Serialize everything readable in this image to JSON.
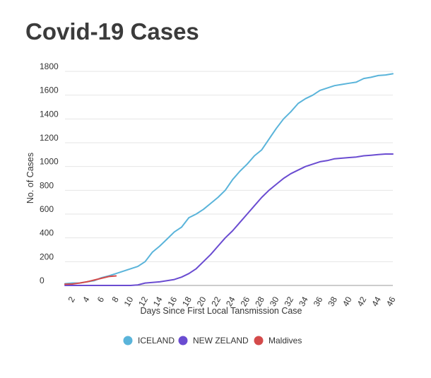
{
  "chart_data": {
    "type": "line",
    "title": "Covid-19 Cases",
    "xlabel": "Days Since First Local Tansmission Case",
    "ylabel": "No. of Cases",
    "ylim": [
      0,
      1800
    ],
    "xlim": [
      1,
      46
    ],
    "y_ticks": [
      0,
      200,
      400,
      600,
      800,
      1000,
      1200,
      1400,
      1600,
      1800
    ],
    "x_ticks": [
      2,
      4,
      6,
      8,
      10,
      12,
      14,
      16,
      18,
      20,
      22,
      24,
      26,
      28,
      30,
      32,
      34,
      36,
      38,
      40,
      42,
      44,
      46
    ],
    "grid": true,
    "legend_position": "bottom",
    "series": [
      {
        "name": "ICELAND",
        "color": "#5ab4da",
        "x": [
          1,
          2,
          3,
          4,
          5,
          6,
          7,
          8,
          9,
          10,
          11,
          12,
          13,
          14,
          15,
          16,
          17,
          18,
          19,
          20,
          21,
          22,
          23,
          24,
          25,
          26,
          27,
          28,
          29,
          30,
          31,
          32,
          33,
          34,
          35,
          36,
          37,
          38,
          39,
          40,
          41,
          42,
          43,
          44,
          45,
          46
        ],
        "values": [
          15,
          20,
          20,
          30,
          40,
          65,
          80,
          100,
          120,
          140,
          160,
          200,
          280,
          330,
          390,
          450,
          490,
          570,
          600,
          640,
          690,
          740,
          800,
          890,
          960,
          1020,
          1090,
          1140,
          1230,
          1320,
          1400,
          1460,
          1530,
          1570,
          1600,
          1640,
          1660,
          1680,
          1690,
          1700,
          1710,
          1740,
          1750,
          1765,
          1770,
          1780
        ]
      },
      {
        "name": "NEW ZELAND",
        "color": "#6a4cd1",
        "x": [
          1,
          2,
          3,
          4,
          5,
          6,
          7,
          8,
          9,
          10,
          11,
          12,
          13,
          14,
          15,
          16,
          17,
          18,
          19,
          20,
          21,
          22,
          23,
          24,
          25,
          26,
          27,
          28,
          29,
          30,
          31,
          32,
          33,
          34,
          35,
          36,
          37,
          38,
          39,
          40,
          41,
          42,
          43,
          44,
          45,
          46
        ],
        "values": [
          0,
          0,
          0,
          0,
          0,
          0,
          0,
          0,
          0,
          0,
          5,
          20,
          25,
          30,
          40,
          50,
          70,
          100,
          140,
          200,
          260,
          330,
          400,
          460,
          530,
          600,
          670,
          740,
          800,
          850,
          900,
          940,
          970,
          1000,
          1020,
          1040,
          1050,
          1065,
          1070,
          1075,
          1080,
          1090,
          1095,
          1100,
          1105,
          1105
        ]
      },
      {
        "name": "Maldives",
        "color": "#d44b4b",
        "x": [
          1,
          2,
          3,
          4,
          5,
          6,
          7,
          8
        ],
        "values": [
          10,
          12,
          20,
          30,
          45,
          60,
          75,
          80
        ]
      }
    ]
  }
}
